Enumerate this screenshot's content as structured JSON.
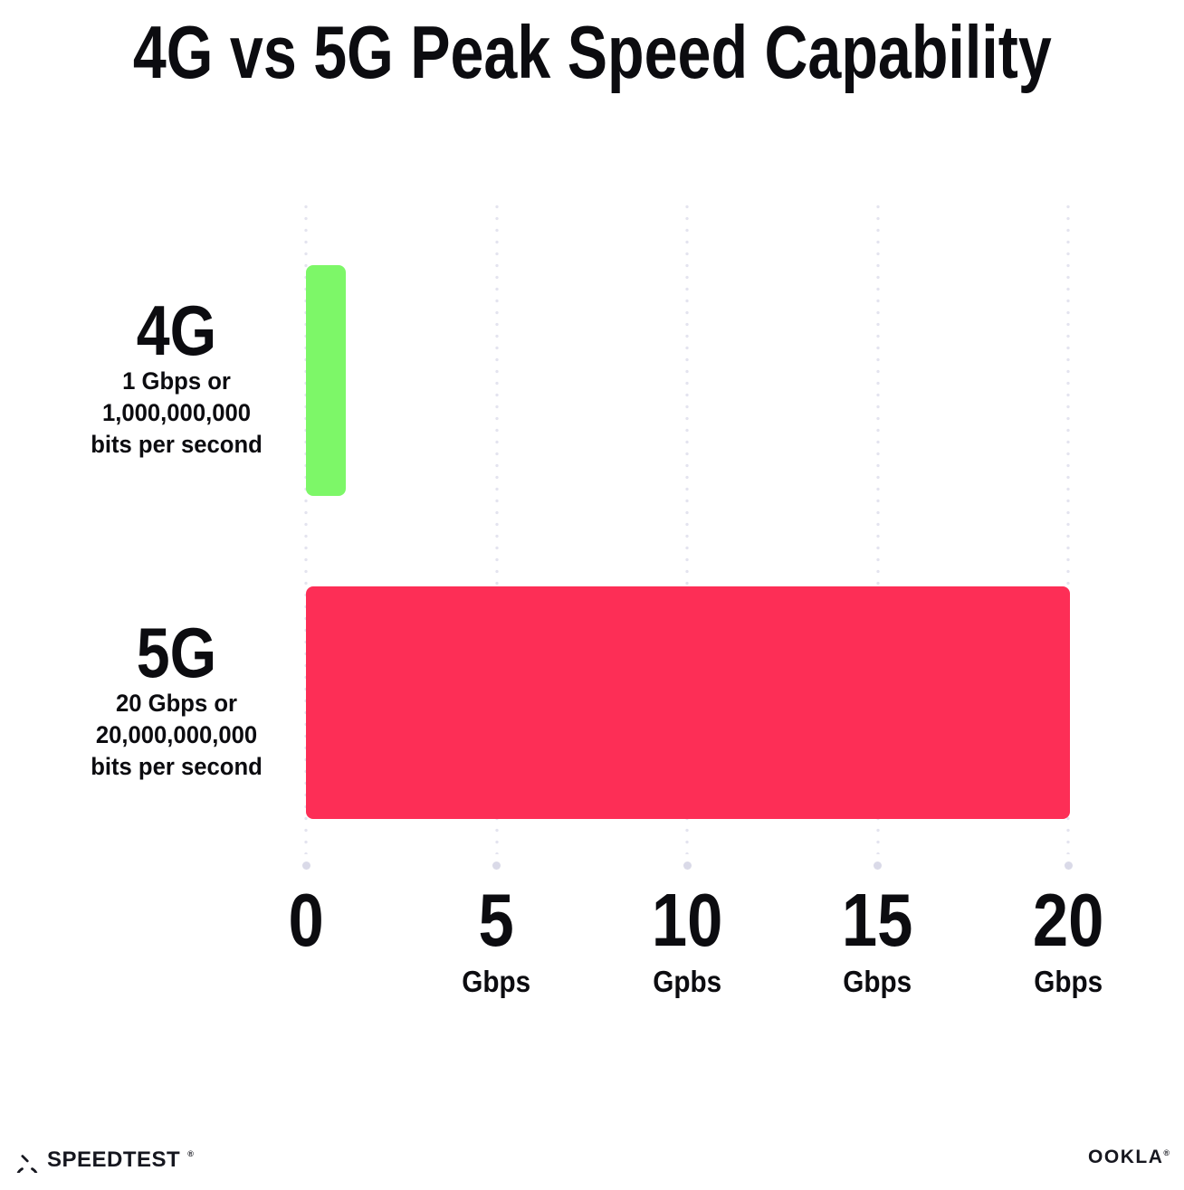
{
  "title": "4G vs 5G Peak Speed Capability",
  "colors": {
    "bar_4g": "#7DF768",
    "bar_5g": "#FD2E56",
    "text": "#0C0C10",
    "grid_dot": "#E4E4EF",
    "grid_end_dot": "#DADAE8",
    "background": "#FFFFFF"
  },
  "rows": [
    {
      "label": "4G",
      "desc_lines": [
        "1 Gbps or",
        "1,000,000,000",
        "bits per second"
      ]
    },
    {
      "label": "5G",
      "desc_lines": [
        "20 Gbps or",
        "20,000,000,000",
        "bits per second"
      ]
    }
  ],
  "chart_data": {
    "type": "bar",
    "orientation": "horizontal",
    "title": "4G vs 5G Peak Speed Capability",
    "categories": [
      "4G",
      "5G"
    ],
    "values": [
      1,
      20
    ],
    "unit": "Gbps",
    "series_colors": [
      "#7DF768",
      "#FD2E56"
    ],
    "annotations": [
      "4G: 1 Gbps or 1,000,000,000 bits per second",
      "5G: 20 Gbps or 20,000,000,000 bits per second"
    ],
    "xlim": [
      0,
      20
    ],
    "x_ticks": [
      {
        "value": 0,
        "label": "0",
        "unit": ""
      },
      {
        "value": 5,
        "label": "5",
        "unit": "Gbps"
      },
      {
        "value": 10,
        "label": "10",
        "unit": "Gpbs"
      },
      {
        "value": 15,
        "label": "15",
        "unit": "Gbps"
      },
      {
        "value": 20,
        "label": "20",
        "unit": "Gbps"
      }
    ],
    "grid": "vertical-dotted",
    "legend": "none"
  },
  "footer": {
    "left_brand": "SPEEDTEST",
    "left_brand_mark": "®",
    "right_brand": "OOKLA",
    "right_brand_mark": "®"
  }
}
